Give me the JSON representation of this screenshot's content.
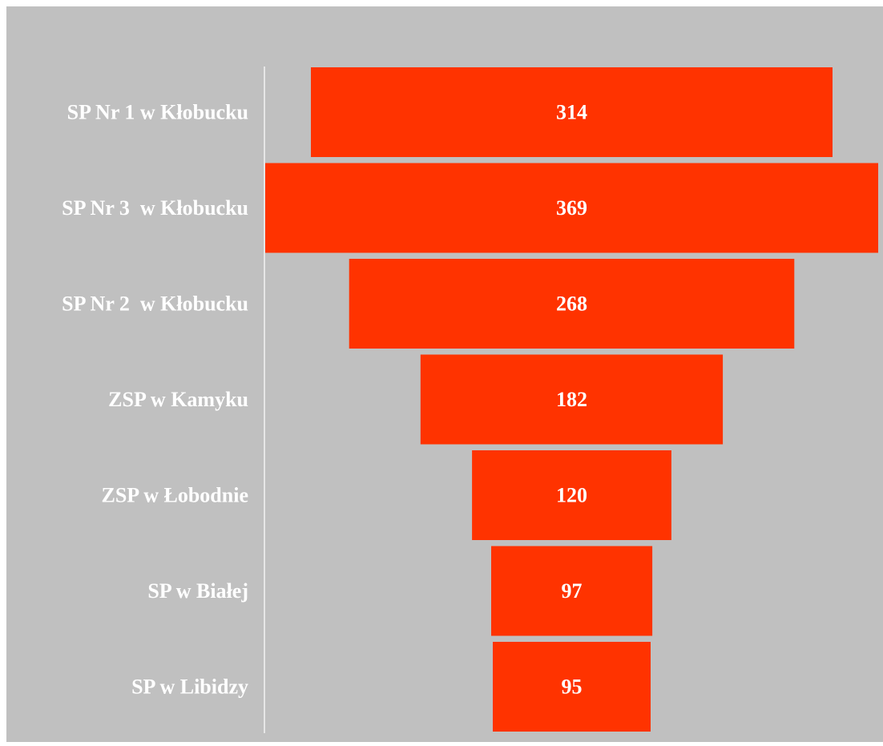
{
  "chart_data": {
    "type": "bar",
    "orientation": "horizontal-funnel",
    "title": "",
    "xlabel": "",
    "ylabel": "",
    "categories": [
      "SP Nr 1 w Kłobucku",
      "SP Nr 3  w Kłobucku",
      "SP Nr 2  w Kłobucku",
      "ZSP w Kamyku",
      "ZSP w Łobodnie",
      "SP w Białej",
      "SP w Libidzy"
    ],
    "values": [
      314,
      369,
      268,
      182,
      120,
      97,
      95
    ],
    "data_labels": [
      "314",
      "369",
      "268",
      "182",
      "120",
      "97",
      "95"
    ],
    "xlim": [
      0,
      369
    ],
    "grid": false,
    "legend": "none",
    "colors": {
      "plot_background": "#c0c0c0",
      "bar_fill": "#ff3300",
      "label_text": "#ffffff",
      "axis_line": "#e6e6e6"
    }
  }
}
